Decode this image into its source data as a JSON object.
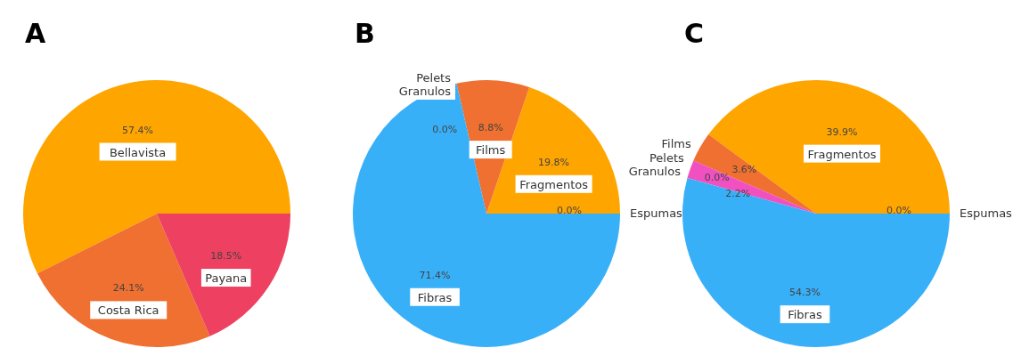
{
  "chart_data": [
    {
      "type": "pie",
      "title": "A",
      "categories": [
        "Bellavista",
        "Costa Rica",
        "Payana"
      ],
      "values": [
        57.4,
        24.1,
        18.5
      ],
      "colors": [
        "#ffa500",
        "#ef7030",
        "#ee4060"
      ],
      "value_labels": [
        "57.4%",
        "24.1%",
        "18.5%"
      ]
    },
    {
      "type": "pie",
      "title": "B",
      "categories": [
        "Espumas",
        "Fragmentos",
        "Films",
        "Pelets",
        "Granulos",
        "Fibras"
      ],
      "values": [
        0,
        19.8,
        8.8,
        0,
        0,
        71.4
      ],
      "colors": [
        "#9467bd",
        "#ffa500",
        "#ef7030",
        "#8c564b",
        "#f050c0",
        "#38b0f8"
      ],
      "value_labels": [
        "0.0%",
        "19.8%",
        "8.8%",
        "0.0%",
        null,
        "71.4%"
      ]
    },
    {
      "type": "pie",
      "title": "C",
      "categories": [
        "Espumas",
        "Fragmentos",
        "Films",
        "Pelets",
        "Granulos",
        "Fibras"
      ],
      "values": [
        0,
        39.9,
        3.6,
        0,
        2.2,
        54.3
      ],
      "colors": [
        "#9467bd",
        "#ffa500",
        "#ef7030",
        "#8c564b",
        "#f050c0",
        "#38b0f8"
      ],
      "value_labels": [
        "0.0%",
        "39.9%",
        "3.6%",
        "0.0%",
        "2.2%",
        "54.3%"
      ]
    }
  ]
}
